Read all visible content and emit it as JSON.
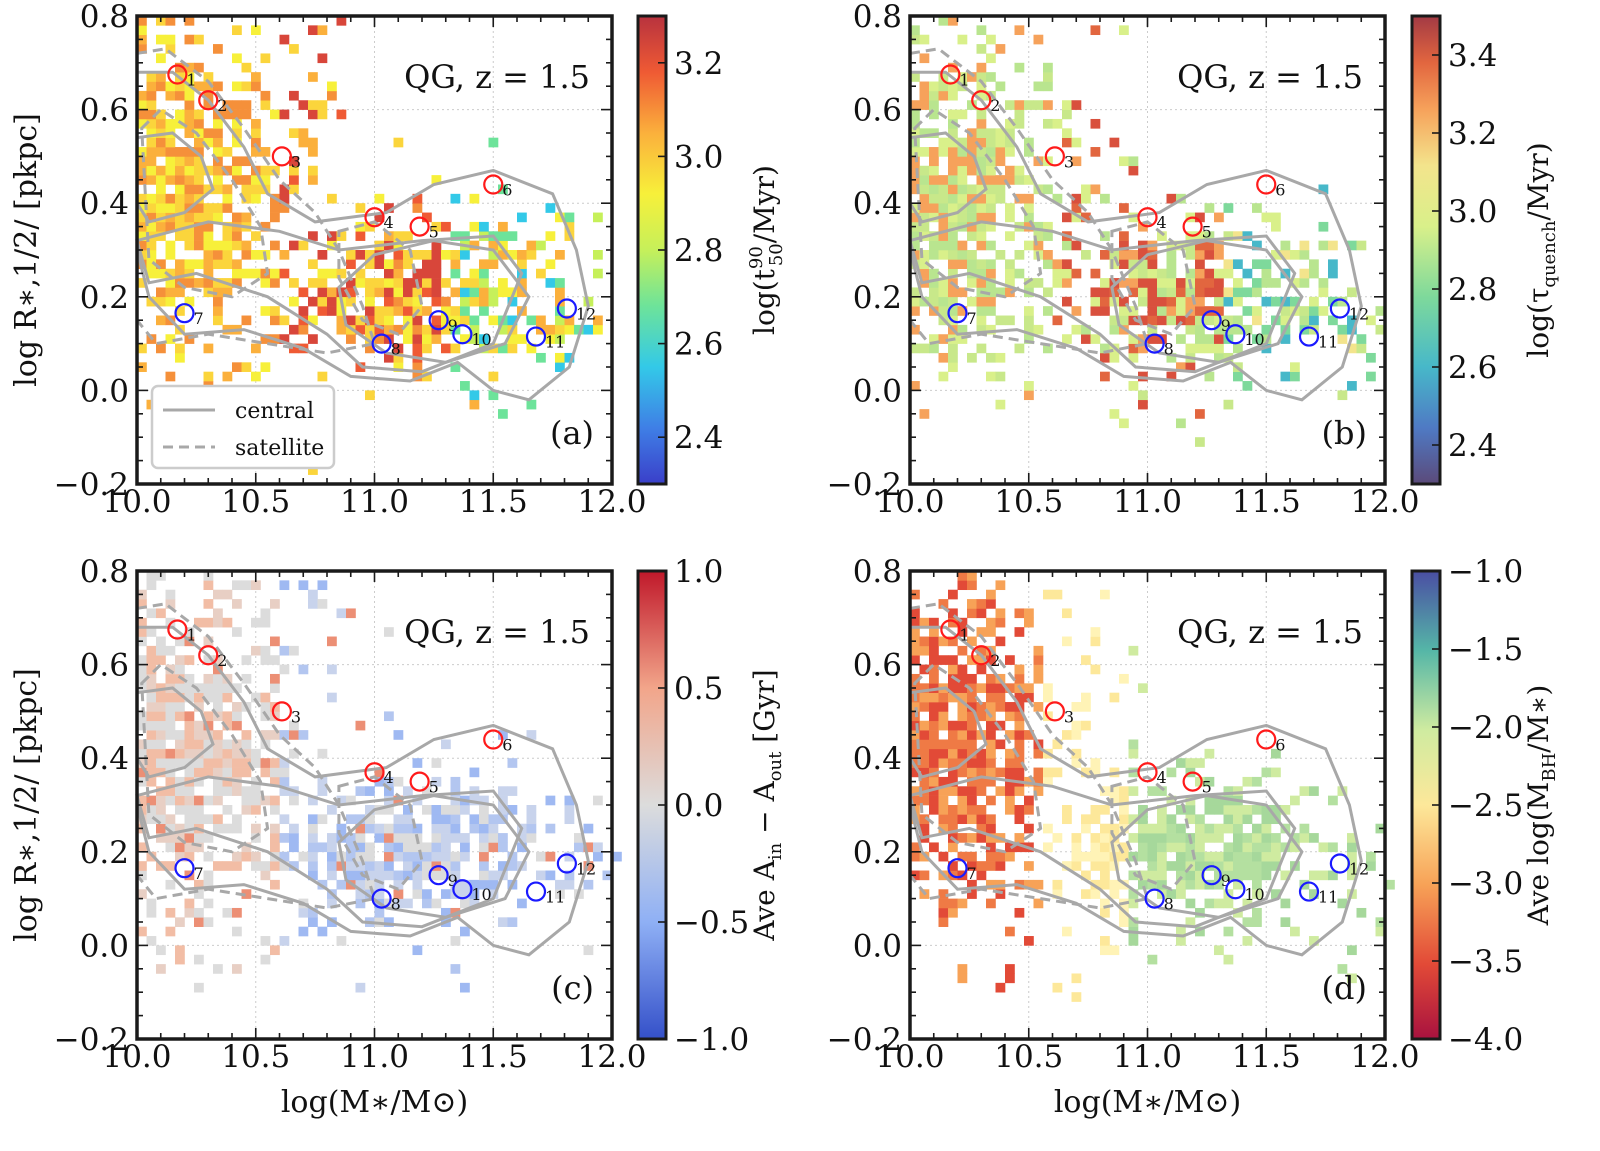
{
  "chart_data": {
    "type": "heatmap",
    "shared": {
      "xlabel": "log(M∗/M⊙)",
      "ylabel": "log R∗,1/2/ [pkpc]",
      "xlim": [
        10.0,
        12.0
      ],
      "ylim": [
        -0.2,
        0.8
      ],
      "xticks": [
        "10.0",
        "10.5",
        "11.0",
        "11.5",
        "12.0"
      ],
      "yticks": [
        "−0.2",
        "0.0",
        "0.2",
        "0.4",
        "0.6",
        "0.8"
      ],
      "grid": true,
      "annotation": "QG, z = 1.5",
      "marked_galaxies": [
        {
          "id": "1",
          "x": 10.17,
          "y": 0.675,
          "color": "red"
        },
        {
          "id": "2",
          "x": 10.3,
          "y": 0.62,
          "color": "red"
        },
        {
          "id": "3",
          "x": 10.61,
          "y": 0.5,
          "color": "red"
        },
        {
          "id": "4",
          "x": 11.0,
          "y": 0.37,
          "color": "red"
        },
        {
          "id": "5",
          "x": 11.19,
          "y": 0.35,
          "color": "red"
        },
        {
          "id": "6",
          "x": 11.5,
          "y": 0.44,
          "color": "red"
        },
        {
          "id": "7",
          "x": 10.2,
          "y": 0.165,
          "color": "blue"
        },
        {
          "id": "8",
          "x": 11.03,
          "y": 0.1,
          "color": "blue"
        },
        {
          "id": "9",
          "x": 11.27,
          "y": 0.15,
          "color": "blue"
        },
        {
          "id": "10",
          "x": 11.37,
          "y": 0.12,
          "color": "blue"
        },
        {
          "id": "11",
          "x": 11.68,
          "y": 0.115,
          "color": "blue"
        },
        {
          "id": "12",
          "x": 11.81,
          "y": 0.175,
          "color": "blue"
        }
      ],
      "legend": {
        "placement": "lower-left",
        "entries": [
          "central",
          "satellite"
        ]
      }
    },
    "panels": [
      {
        "label": "(a)",
        "colorbar": {
          "title": "log(t₉₀₅₀/Myr)",
          "title_main": "log(t",
          "title_sup": "90",
          "title_sub": "50",
          "title_tail": "/Myr)",
          "range": [
            2.3,
            3.3
          ],
          "ticks": [
            "3.2",
            "3.0",
            "2.8",
            "2.6",
            "2.4"
          ],
          "tick_values": [
            3.2,
            3.0,
            2.8,
            2.6,
            2.4
          ],
          "cmap": "spectral-r"
        },
        "show_legend": true
      },
      {
        "label": "(b)",
        "colorbar": {
          "title": "log(τquench/Myr)",
          "title_main": "log(τ",
          "title_sub": "quench",
          "title_tail": "/Myr)",
          "range": [
            2.3,
            3.5
          ],
          "ticks": [
            "3.4",
            "3.2",
            "3.0",
            "2.8",
            "2.6",
            "2.4"
          ],
          "tick_values": [
            3.4,
            3.2,
            3.0,
            2.8,
            2.6,
            2.4
          ],
          "cmap": "spectral-r"
        },
        "show_legend": false
      },
      {
        "label": "(c)",
        "colorbar": {
          "title": "Ave Ain − Aout [Gyr]",
          "title_main": "Ave A",
          "title_sub": "in",
          "title_tail": " − A",
          "title_sub2": "out",
          "title_tail2": " [Gyr]",
          "range": [
            -1.0,
            1.0
          ],
          "ticks": [
            "1.0",
            "0.5",
            "0.0",
            "−0.5",
            "−1.0"
          ],
          "tick_values": [
            1.0,
            0.5,
            0.0,
            -0.5,
            -1.0
          ],
          "cmap": "coolwarm"
        },
        "show_legend": false
      },
      {
        "label": "(d)",
        "colorbar": {
          "title": "Ave log(MBH/M∗)",
          "title_main": "Ave log(M",
          "title_sub": "BH",
          "title_tail": "/M∗)",
          "range": [
            -4.0,
            -1.0
          ],
          "ticks": [
            "−1.0",
            "−1.5",
            "−2.0",
            "−2.5",
            "−3.0",
            "−3.5",
            "−4.0"
          ],
          "tick_values": [
            -1.0,
            -1.5,
            -2.0,
            -2.5,
            -3.0,
            -3.5,
            -4.0
          ],
          "cmap": "spectral"
        },
        "show_legend": false
      }
    ],
    "colors": {
      "red_marker": "#ff1a1a",
      "blue_marker": "#1a1aff",
      "contour": "#a8a8a8",
      "frame": "#1a1a1a"
    }
  }
}
